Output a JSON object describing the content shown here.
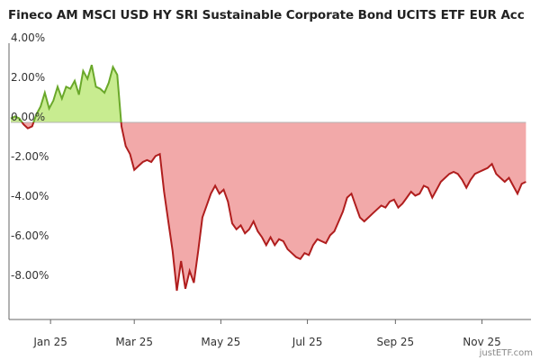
{
  "header": {
    "title": "Fineco AM MSCI USD HY SRI Sustainable Corporate Bond UCITS ETF EUR Acc"
  },
  "watermark": "justETF.com",
  "colors": {
    "positive_fill": "#c8ec90",
    "positive_line": "#6aa82a",
    "negative_fill": "#f2a9a9",
    "negative_line": "#b01e1e",
    "zero_line": "#b4b4b4",
    "axis": "#666666"
  },
  "chart_data": {
    "type": "area",
    "title": "Fineco AM MSCI USD HY SRI Sustainable Corporate Bond UCITS ETF EUR Acc",
    "xlabel": "",
    "ylabel": "",
    "ylim": [
      -10,
      4.5
    ],
    "xlim": [
      "2024-12-18",
      "2025-12-17"
    ],
    "yticks": [
      {
        "value": 4,
        "label": "4.00%"
      },
      {
        "value": 2,
        "label": "2.00%"
      },
      {
        "value": 0,
        "label": "0.00%"
      },
      {
        "value": -2,
        "label": "-2.00%"
      },
      {
        "value": -4,
        "label": "-4.00%"
      },
      {
        "value": -6,
        "label": "-6.00%"
      },
      {
        "value": -8,
        "label": "-8.00%"
      }
    ],
    "xticks": [
      {
        "date": "2025-01-15",
        "label": "Jan 25"
      },
      {
        "date": "2025-03-15",
        "label": "Mar 25"
      },
      {
        "date": "2025-05-15",
        "label": "May 25"
      },
      {
        "date": "2025-07-15",
        "label": "Jul 25"
      },
      {
        "date": "2025-09-15",
        "label": "Sep 25"
      },
      {
        "date": "2025-11-15",
        "label": "Nov 25"
      }
    ],
    "grid": false,
    "series": [
      {
        "points": [
          [
            "2024-12-18",
            0.2
          ],
          [
            "2024-12-21",
            0.3
          ],
          [
            "2024-12-24",
            0.2
          ],
          [
            "2024-12-27",
            -0.1
          ],
          [
            "2024-12-30",
            -0.3
          ],
          [
            "2025-01-02",
            -0.2
          ],
          [
            "2025-01-05",
            0.4
          ],
          [
            "2025-01-08",
            0.8
          ],
          [
            "2025-01-11",
            1.5
          ],
          [
            "2025-01-14",
            0.7
          ],
          [
            "2025-01-17",
            1.1
          ],
          [
            "2025-01-20",
            1.8
          ],
          [
            "2025-01-23",
            1.2
          ],
          [
            "2025-01-26",
            1.8
          ],
          [
            "2025-01-29",
            1.7
          ],
          [
            "2025-02-01",
            2.1
          ],
          [
            "2025-02-04",
            1.4
          ],
          [
            "2025-02-07",
            2.6
          ],
          [
            "2025-02-10",
            2.2
          ],
          [
            "2025-02-13",
            2.9
          ],
          [
            "2025-02-16",
            1.8
          ],
          [
            "2025-02-19",
            1.7
          ],
          [
            "2025-02-22",
            1.5
          ],
          [
            "2025-02-25",
            2.0
          ],
          [
            "2025-02-28",
            2.8
          ],
          [
            "2025-03-03",
            2.4
          ],
          [
            "2025-03-06",
            -0.2
          ],
          [
            "2025-03-09",
            -1.2
          ],
          [
            "2025-03-12",
            -1.6
          ],
          [
            "2025-03-15",
            -2.4
          ],
          [
            "2025-03-18",
            -2.2
          ],
          [
            "2025-03-21",
            -2.0
          ],
          [
            "2025-03-24",
            -1.9
          ],
          [
            "2025-03-27",
            -2.0
          ],
          [
            "2025-03-30",
            -1.7
          ],
          [
            "2025-04-02",
            -1.6
          ],
          [
            "2025-04-05",
            -3.5
          ],
          [
            "2025-04-08",
            -5.0
          ],
          [
            "2025-04-11",
            -6.5
          ],
          [
            "2025-04-14",
            -8.5
          ],
          [
            "2025-04-17",
            -7.0
          ],
          [
            "2025-04-20",
            -8.4
          ],
          [
            "2025-04-23",
            -7.5
          ],
          [
            "2025-04-26",
            -8.1
          ],
          [
            "2025-04-29",
            -6.5
          ],
          [
            "2025-05-02",
            -4.8
          ],
          [
            "2025-05-05",
            -4.2
          ],
          [
            "2025-05-08",
            -3.6
          ],
          [
            "2025-05-11",
            -3.2
          ],
          [
            "2025-05-14",
            -3.6
          ],
          [
            "2025-05-17",
            -3.4
          ],
          [
            "2025-05-20",
            -4.0
          ],
          [
            "2025-05-23",
            -5.1
          ],
          [
            "2025-05-26",
            -5.4
          ],
          [
            "2025-05-29",
            -5.2
          ],
          [
            "2025-06-01",
            -5.6
          ],
          [
            "2025-06-04",
            -5.4
          ],
          [
            "2025-06-07",
            -5.0
          ],
          [
            "2025-06-10",
            -5.5
          ],
          [
            "2025-06-13",
            -5.8
          ],
          [
            "2025-06-16",
            -6.2
          ],
          [
            "2025-06-19",
            -5.8
          ],
          [
            "2025-06-22",
            -6.2
          ],
          [
            "2025-06-25",
            -5.9
          ],
          [
            "2025-06-28",
            -6.0
          ],
          [
            "2025-07-01",
            -6.4
          ],
          [
            "2025-07-04",
            -6.6
          ],
          [
            "2025-07-07",
            -6.8
          ],
          [
            "2025-07-10",
            -6.9
          ],
          [
            "2025-07-13",
            -6.6
          ],
          [
            "2025-07-16",
            -6.7
          ],
          [
            "2025-07-19",
            -6.2
          ],
          [
            "2025-07-22",
            -5.9
          ],
          [
            "2025-07-25",
            -6.0
          ],
          [
            "2025-07-28",
            -6.1
          ],
          [
            "2025-07-31",
            -5.7
          ],
          [
            "2025-08-03",
            -5.5
          ],
          [
            "2025-08-06",
            -5.0
          ],
          [
            "2025-08-09",
            -4.5
          ],
          [
            "2025-08-12",
            -3.8
          ],
          [
            "2025-08-15",
            -3.6
          ],
          [
            "2025-08-18",
            -4.2
          ],
          [
            "2025-08-21",
            -4.8
          ],
          [
            "2025-08-24",
            -5.0
          ],
          [
            "2025-08-27",
            -4.8
          ],
          [
            "2025-08-30",
            -4.6
          ],
          [
            "2025-09-02",
            -4.4
          ],
          [
            "2025-09-05",
            -4.2
          ],
          [
            "2025-09-08",
            -4.3
          ],
          [
            "2025-09-11",
            -4.0
          ],
          [
            "2025-09-14",
            -3.9
          ],
          [
            "2025-09-17",
            -4.3
          ],
          [
            "2025-09-20",
            -4.1
          ],
          [
            "2025-09-23",
            -3.8
          ],
          [
            "2025-09-26",
            -3.5
          ],
          [
            "2025-09-29",
            -3.7
          ],
          [
            "2025-10-02",
            -3.6
          ],
          [
            "2025-10-05",
            -3.2
          ],
          [
            "2025-10-08",
            -3.3
          ],
          [
            "2025-10-11",
            -3.8
          ],
          [
            "2025-10-14",
            -3.4
          ],
          [
            "2025-10-17",
            -3.0
          ],
          [
            "2025-10-20",
            -2.8
          ],
          [
            "2025-10-23",
            -2.6
          ],
          [
            "2025-10-26",
            -2.5
          ],
          [
            "2025-10-29",
            -2.6
          ],
          [
            "2025-11-01",
            -2.9
          ],
          [
            "2025-11-04",
            -3.3
          ],
          [
            "2025-11-07",
            -2.9
          ],
          [
            "2025-11-10",
            -2.6
          ],
          [
            "2025-11-13",
            -2.5
          ],
          [
            "2025-11-16",
            -2.4
          ],
          [
            "2025-11-19",
            -2.3
          ],
          [
            "2025-11-22",
            -2.1
          ],
          [
            "2025-11-25",
            -2.6
          ],
          [
            "2025-11-28",
            -2.8
          ],
          [
            "2025-12-01",
            -3.0
          ],
          [
            "2025-12-04",
            -2.8
          ],
          [
            "2025-12-07",
            -3.2
          ],
          [
            "2025-12-10",
            -3.6
          ],
          [
            "2025-12-13",
            -3.1
          ],
          [
            "2025-12-16",
            -3.0
          ]
        ]
      }
    ]
  }
}
